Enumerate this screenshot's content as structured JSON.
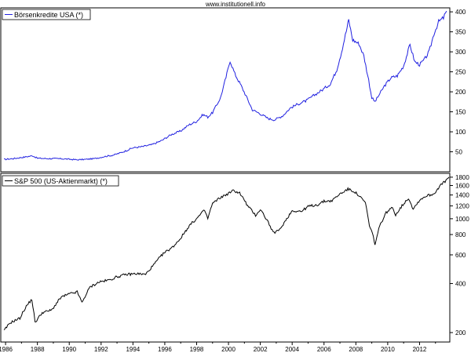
{
  "header": {
    "site": "www.institutionell.info"
  },
  "chart_data": [
    {
      "type": "line",
      "legend": "Börsenkredite USA (*)",
      "color": "#2020e0",
      "scale": "linear",
      "ylim": [
        0,
        410
      ],
      "y_ticks": [
        50,
        100,
        150,
        200,
        250,
        300,
        350,
        400
      ],
      "grid": false,
      "legend_position": "top-left",
      "series": [
        {
          "name": "Börsenkredite USA (*)",
          "points": [
            [
              1985.9,
              31
            ],
            [
              1986.5,
              33
            ],
            [
              1987.2,
              37
            ],
            [
              1987.7,
              40
            ],
            [
              1988.0,
              34
            ],
            [
              1988.6,
              33
            ],
            [
              1989.2,
              33
            ],
            [
              1989.8,
              32
            ],
            [
              1990.5,
              30
            ],
            [
              1991.0,
              31
            ],
            [
              1991.6,
              33
            ],
            [
              1992.2,
              38
            ],
            [
              1992.8,
              42
            ],
            [
              1993.4,
              50
            ],
            [
              1994.0,
              60
            ],
            [
              1994.6,
              63
            ],
            [
              1995.2,
              68
            ],
            [
              1995.8,
              78
            ],
            [
              1996.4,
              93
            ],
            [
              1997.0,
              102
            ],
            [
              1997.5,
              117
            ],
            [
              1998.0,
              126
            ],
            [
              1998.4,
              143
            ],
            [
              1998.7,
              137
            ],
            [
              1999.0,
              148
            ],
            [
              1999.5,
              185
            ],
            [
              1999.9,
              245
            ],
            [
              2000.1,
              278
            ],
            [
              2000.4,
              245
            ],
            [
              2000.8,
              215
            ],
            [
              2001.1,
              190
            ],
            [
              2001.5,
              155
            ],
            [
              2002.0,
              145
            ],
            [
              2002.5,
              133
            ],
            [
              2002.9,
              130
            ],
            [
              2003.4,
              140
            ],
            [
              2003.9,
              160
            ],
            [
              2004.4,
              170
            ],
            [
              2004.9,
              178
            ],
            [
              2005.4,
              192
            ],
            [
              2005.9,
              205
            ],
            [
              2006.4,
              220
            ],
            [
              2006.8,
              255
            ],
            [
              2007.1,
              300
            ],
            [
              2007.4,
              352
            ],
            [
              2007.55,
              380
            ],
            [
              2007.8,
              330
            ],
            [
              2008.2,
              320
            ],
            [
              2008.5,
              290
            ],
            [
              2008.8,
              230
            ],
            [
              2009.0,
              185
            ],
            [
              2009.2,
              175
            ],
            [
              2009.5,
              195
            ],
            [
              2009.8,
              215
            ],
            [
              2010.2,
              235
            ],
            [
              2010.6,
              240
            ],
            [
              2011.0,
              265
            ],
            [
              2011.4,
              318
            ],
            [
              2011.7,
              275
            ],
            [
              2012.0,
              268
            ],
            [
              2012.3,
              280
            ],
            [
              2012.6,
              300
            ],
            [
              2012.9,
              345
            ],
            [
              2013.2,
              375
            ],
            [
              2013.5,
              385
            ],
            [
              2013.7,
              402
            ]
          ]
        }
      ]
    },
    {
      "type": "line",
      "legend": "S&P 500 (US-Aktienmarkt) (*)",
      "color": "#000000",
      "scale": "log",
      "ylim": [
        175,
        1900
      ],
      "y_ticks": [
        200,
        400,
        600,
        800,
        1000,
        1200,
        1400,
        1600,
        1800
      ],
      "grid": false,
      "legend_position": "top-left",
      "series": [
        {
          "name": "S&P 500 (US-Aktienmarkt) (*)",
          "points": [
            [
              1985.9,
              205
            ],
            [
              1986.3,
              230
            ],
            [
              1986.9,
              245
            ],
            [
              1987.3,
              290
            ],
            [
              1987.65,
              320
            ],
            [
              1987.85,
              230
            ],
            [
              1988.3,
              265
            ],
            [
              1988.9,
              275
            ],
            [
              1989.5,
              330
            ],
            [
              1990.0,
              345
            ],
            [
              1990.5,
              355
            ],
            [
              1990.8,
              305
            ],
            [
              1991.3,
              380
            ],
            [
              1991.9,
              410
            ],
            [
              1992.5,
              420
            ],
            [
              1993.0,
              440
            ],
            [
              1993.6,
              455
            ],
            [
              1994.2,
              460
            ],
            [
              1994.8,
              455
            ],
            [
              1995.3,
              520
            ],
            [
              1995.9,
              610
            ],
            [
              1996.5,
              670
            ],
            [
              1997.0,
              760
            ],
            [
              1997.6,
              920
            ],
            [
              1998.0,
              1000
            ],
            [
              1998.5,
              1130
            ],
            [
              1998.7,
              1000
            ],
            [
              1999.0,
              1240
            ],
            [
              1999.5,
              1350
            ],
            [
              2000.0,
              1430
            ],
            [
              2000.3,
              1490
            ],
            [
              2000.7,
              1440
            ],
            [
              2001.2,
              1200
            ],
            [
              2001.7,
              1050
            ],
            [
              2002.0,
              1140
            ],
            [
              2002.5,
              950
            ],
            [
              2002.8,
              820
            ],
            [
              2003.2,
              850
            ],
            [
              2003.6,
              980
            ],
            [
              2004.0,
              1120
            ],
            [
              2004.6,
              1110
            ],
            [
              2005.0,
              1190
            ],
            [
              2005.6,
              1220
            ],
            [
              2006.0,
              1280
            ],
            [
              2006.5,
              1290
            ],
            [
              2007.0,
              1420
            ],
            [
              2007.5,
              1520
            ],
            [
              2007.9,
              1470
            ],
            [
              2008.3,
              1350
            ],
            [
              2008.6,
              1250
            ],
            [
              2008.85,
              900
            ],
            [
              2009.1,
              780
            ],
            [
              2009.2,
              690
            ],
            [
              2009.5,
              900
            ],
            [
              2009.9,
              1090
            ],
            [
              2010.3,
              1170
            ],
            [
              2010.5,
              1060
            ],
            [
              2010.9,
              1200
            ],
            [
              2011.3,
              1340
            ],
            [
              2011.6,
              1150
            ],
            [
              2012.0,
              1300
            ],
            [
              2012.4,
              1380
            ],
            [
              2012.9,
              1420
            ],
            [
              2013.3,
              1600
            ],
            [
              2013.6,
              1690
            ],
            [
              2013.85,
              1800
            ]
          ]
        }
      ]
    }
  ],
  "x_axis": {
    "range": [
      1985.7,
      2013.9
    ],
    "tick_labels": [
      "1986",
      "1988",
      "1990",
      "1992",
      "1994",
      "1996",
      "1998",
      "2000",
      "2002",
      "2004",
      "2006",
      "2008",
      "2010",
      "2012"
    ]
  }
}
